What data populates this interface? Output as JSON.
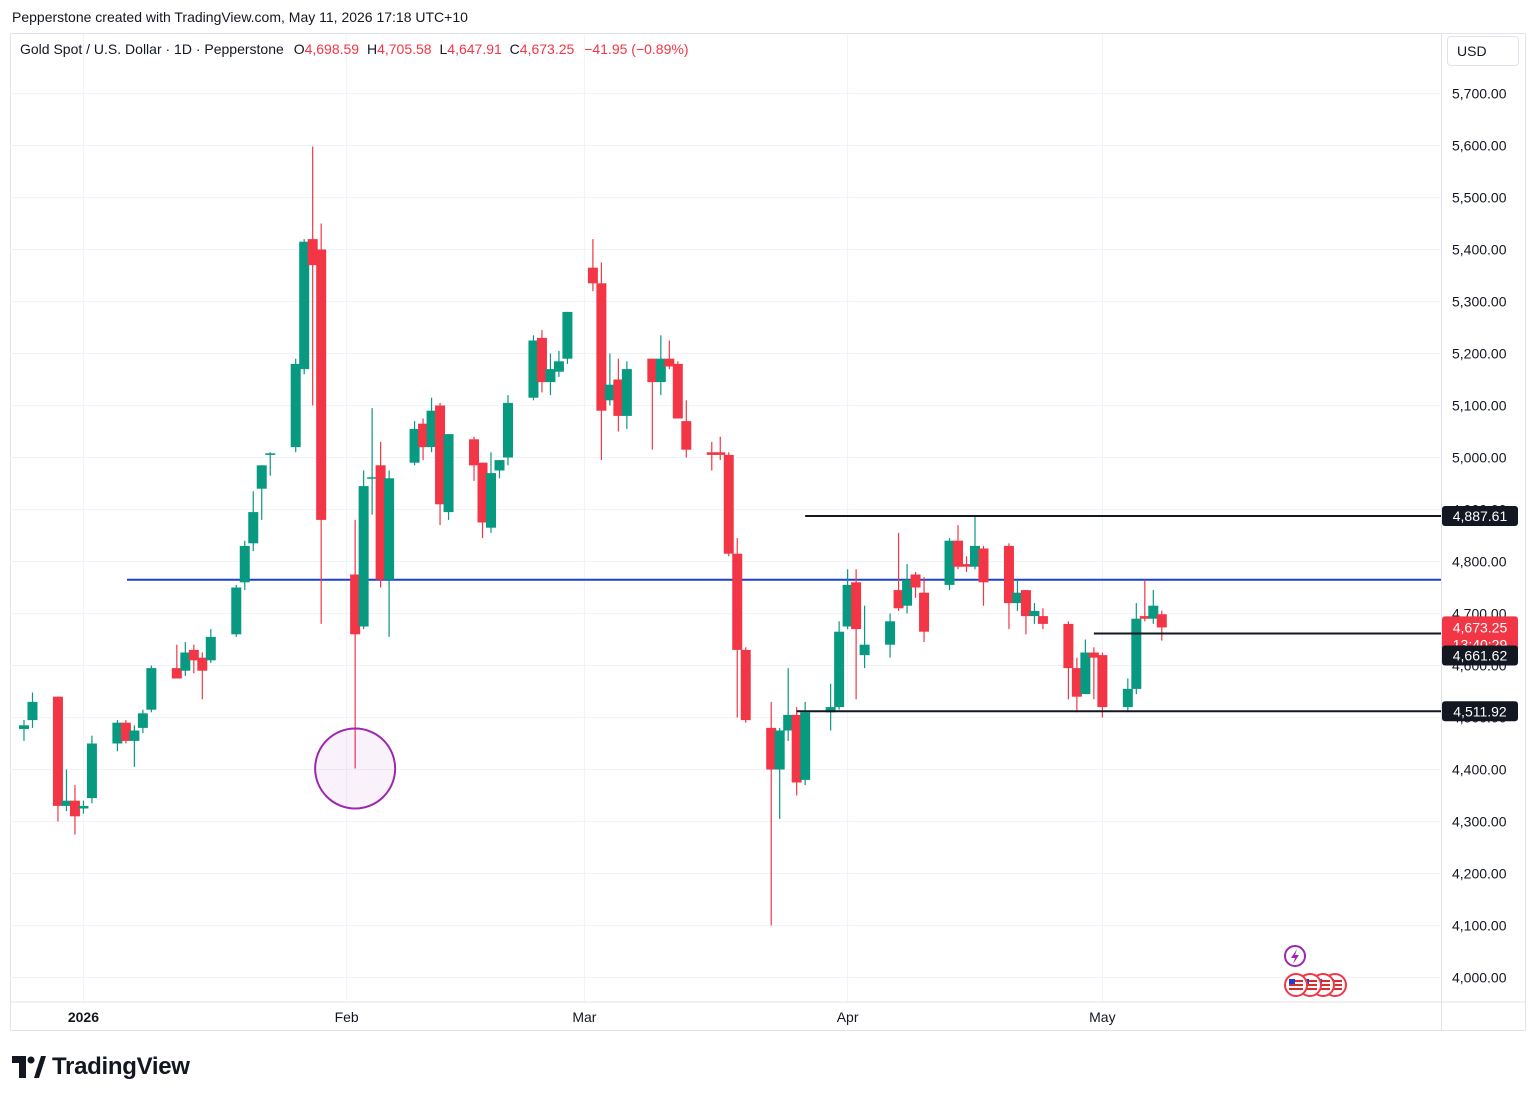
{
  "header": {
    "credit": "Pepperstone created with TradingView.com, May 11, 2026 17:18 UTC+10"
  },
  "legend": {
    "symbol": "Gold Spot / U.S. Dollar · 1D · Pepperstone",
    "o_label": "O",
    "o_value": "4,698.59",
    "h_label": "H",
    "h_value": "4,705.58",
    "l_label": "L",
    "l_value": "4,647.91",
    "c_label": "C",
    "c_value": "4,673.25",
    "change": "−41.95 (−0.89%)"
  },
  "currency": "USD",
  "brand": {
    "name": "TradingView"
  },
  "colors": {
    "up": "#089981",
    "down": "#f23645",
    "blue_line": "#1e3fd4",
    "circle": "#9c27b0",
    "label_dark": "#131722"
  },
  "chart_data": {
    "type": "candlestick",
    "symbol": "XAUUSD",
    "timeframe": "1D",
    "ylim": [
      3960,
      5780
    ],
    "y_ticks": [
      {
        "value": 4000,
        "label": "4,000.00"
      },
      {
        "value": 4100,
        "label": "4,100.00"
      },
      {
        "value": 4200,
        "label": "4,200.00"
      },
      {
        "value": 4300,
        "label": "4,300.00"
      },
      {
        "value": 4400,
        "label": "4,400.00"
      },
      {
        "value": 4500,
        "label": "4,500.00"
      },
      {
        "value": 4600,
        "label": "4,600.00"
      },
      {
        "value": 4700,
        "label": "4,700.00"
      },
      {
        "value": 4800,
        "label": "4,800.00"
      },
      {
        "value": 4900,
        "label": "4,900.00"
      },
      {
        "value": 5000,
        "label": "5,000.00"
      },
      {
        "value": 5100,
        "label": "5,100.00"
      },
      {
        "value": 5200,
        "label": "5,200.00"
      },
      {
        "value": 5300,
        "label": "5,300.00"
      },
      {
        "value": 5400,
        "label": "5,400.00"
      },
      {
        "value": 5500,
        "label": "5,500.00"
      },
      {
        "value": 5600,
        "label": "5,600.00"
      },
      {
        "value": 5700,
        "label": "5,700.00"
      }
    ],
    "x_ticks": [
      {
        "date": "2026-01-01",
        "label": "2026",
        "bold": true
      },
      {
        "date": "2026-02-01",
        "label": "Feb",
        "bold": false
      },
      {
        "date": "2026-03-01",
        "label": "Mar",
        "bold": false
      },
      {
        "date": "2026-04-01",
        "label": "Apr",
        "bold": false
      },
      {
        "date": "2026-05-01",
        "label": "May",
        "bold": false
      }
    ],
    "x_range": [
      "2025-12-24",
      "2026-06-10"
    ],
    "grid": true,
    "candles": [
      {
        "d": "2025-12-25",
        "o": 4478,
        "h": 4495,
        "l": 4455,
        "c": 4485
      },
      {
        "d": "2025-12-26",
        "o": 4495,
        "h": 4548,
        "l": 4480,
        "c": 4530
      },
      {
        "d": "2025-12-29",
        "o": 4540,
        "h": 4540,
        "l": 4300,
        "c": 4330
      },
      {
        "d": "2025-12-30",
        "o": 4330,
        "h": 4400,
        "l": 4320,
        "c": 4340
      },
      {
        "d": "2025-12-31",
        "o": 4340,
        "h": 4370,
        "l": 4275,
        "c": 4310
      },
      {
        "d": "2026-01-01",
        "o": 4325,
        "h": 4340,
        "l": 4315,
        "c": 4330
      },
      {
        "d": "2026-01-02",
        "o": 4345,
        "h": 4465,
        "l": 4335,
        "c": 4450
      },
      {
        "d": "2026-01-05",
        "o": 4450,
        "h": 4495,
        "l": 4435,
        "c": 4490
      },
      {
        "d": "2026-01-06",
        "o": 4490,
        "h": 4495,
        "l": 4450,
        "c": 4455
      },
      {
        "d": "2026-01-07",
        "o": 4455,
        "h": 4485,
        "l": 4405,
        "c": 4475
      },
      {
        "d": "2026-01-08",
        "o": 4480,
        "h": 4515,
        "l": 4470,
        "c": 4508
      },
      {
        "d": "2026-01-09",
        "o": 4515,
        "h": 4600,
        "l": 4510,
        "c": 4595
      },
      {
        "d": "2026-01-12",
        "o": 4595,
        "h": 4640,
        "l": 4580,
        "c": 4575
      },
      {
        "d": "2026-01-13",
        "o": 4590,
        "h": 4645,
        "l": 4580,
        "c": 4625
      },
      {
        "d": "2026-01-14",
        "o": 4630,
        "h": 4640,
        "l": 4585,
        "c": 4610
      },
      {
        "d": "2026-01-15",
        "o": 4615,
        "h": 4625,
        "l": 4535,
        "c": 4590
      },
      {
        "d": "2026-01-16",
        "o": 4610,
        "h": 4670,
        "l": 4605,
        "c": 4655
      },
      {
        "d": "2026-01-19",
        "o": 4660,
        "h": 4755,
        "l": 4655,
        "c": 4750
      },
      {
        "d": "2026-01-20",
        "o": 4760,
        "h": 4840,
        "l": 4745,
        "c": 4830
      },
      {
        "d": "2026-01-21",
        "o": 4835,
        "h": 4935,
        "l": 4820,
        "c": 4895
      },
      {
        "d": "2026-01-22",
        "o": 4940,
        "h": 4985,
        "l": 4880,
        "c": 4985
      },
      {
        "d": "2026-01-23",
        "o": 5005,
        "h": 5010,
        "l": 4965,
        "c": 5008
      },
      {
        "d": "2026-01-26",
        "o": 5020,
        "h": 5190,
        "l": 5010,
        "c": 5180
      },
      {
        "d": "2026-01-27",
        "o": 5170,
        "h": 5420,
        "l": 5160,
        "c": 5415
      },
      {
        "d": "2026-01-28",
        "o": 5420,
        "h": 5598,
        "l": 5100,
        "c": 5370
      },
      {
        "d": "2026-01-29",
        "o": 5400,
        "h": 5450,
        "l": 4680,
        "c": 4880
      },
      {
        "d": "2026-02-02",
        "o": 4775,
        "h": 4880,
        "l": 4402,
        "c": 4660
      },
      {
        "d": "2026-02-03",
        "o": 4675,
        "h": 4975,
        "l": 4670,
        "c": 4945
      },
      {
        "d": "2026-02-04",
        "o": 4960,
        "h": 5095,
        "l": 4890,
        "c": 4962
      },
      {
        "d": "2026-02-05",
        "o": 4985,
        "h": 5030,
        "l": 4750,
        "c": 4765
      },
      {
        "d": "2026-02-06",
        "o": 4765,
        "h": 4975,
        "l": 4655,
        "c": 4960
      },
      {
        "d": "2026-02-09",
        "o": 4990,
        "h": 5070,
        "l": 4985,
        "c": 5055
      },
      {
        "d": "2026-02-10",
        "o": 5065,
        "h": 5075,
        "l": 4995,
        "c": 5020
      },
      {
        "d": "2026-02-11",
        "o": 5020,
        "h": 5115,
        "l": 5010,
        "c": 5090
      },
      {
        "d": "2026-02-12",
        "o": 5100,
        "h": 5105,
        "l": 4870,
        "c": 4910
      },
      {
        "d": "2026-02-13",
        "o": 4895,
        "h": 5045,
        "l": 4880,
        "c": 5045
      },
      {
        "d": "2026-02-16",
        "o": 5035,
        "h": 5040,
        "l": 4955,
        "c": 4985
      },
      {
        "d": "2026-02-17",
        "o": 4990,
        "h": 4990,
        "l": 4845,
        "c": 4875
      },
      {
        "d": "2026-02-18",
        "o": 4865,
        "h": 5010,
        "l": 4855,
        "c": 4970
      },
      {
        "d": "2026-02-19",
        "o": 4975,
        "h": 4995,
        "l": 4960,
        "c": 4995
      },
      {
        "d": "2026-02-20",
        "o": 5000,
        "h": 5120,
        "l": 4985,
        "c": 5105
      },
      {
        "d": "2026-02-23",
        "o": 5115,
        "h": 5235,
        "l": 5110,
        "c": 5225
      },
      {
        "d": "2026-02-24",
        "o": 5230,
        "h": 5245,
        "l": 5125,
        "c": 5145
      },
      {
        "d": "2026-02-25",
        "o": 5145,
        "h": 5200,
        "l": 5120,
        "c": 5170
      },
      {
        "d": "2026-02-26",
        "o": 5165,
        "h": 5205,
        "l": 5155,
        "c": 5185
      },
      {
        "d": "2026-02-27",
        "o": 5190,
        "h": 5280,
        "l": 5180,
        "c": 5280
      },
      {
        "d": "2026-03-02",
        "o": 5365,
        "h": 5420,
        "l": 5320,
        "c": 5335
      },
      {
        "d": "2026-03-03",
        "o": 5335,
        "h": 5375,
        "l": 4995,
        "c": 5090
      },
      {
        "d": "2026-03-04",
        "o": 5110,
        "h": 5200,
        "l": 5100,
        "c": 5140
      },
      {
        "d": "2026-03-05",
        "o": 5150,
        "h": 5190,
        "l": 5050,
        "c": 5080
      },
      {
        "d": "2026-03-06",
        "o": 5080,
        "h": 5185,
        "l": 5055,
        "c": 5170
      },
      {
        "d": "2026-03-09",
        "o": 5190,
        "h": 5190,
        "l": 5015,
        "c": 5145
      },
      {
        "d": "2026-03-10",
        "o": 5145,
        "h": 5235,
        "l": 5120,
        "c": 5190
      },
      {
        "d": "2026-03-11",
        "o": 5190,
        "h": 5225,
        "l": 5170,
        "c": 5175
      },
      {
        "d": "2026-03-12",
        "o": 5180,
        "h": 5185,
        "l": 5075,
        "c": 5075
      },
      {
        "d": "2026-03-13",
        "o": 5070,
        "h": 5110,
        "l": 5000,
        "c": 5015
      },
      {
        "d": "2026-03-16",
        "o": 5010,
        "h": 5030,
        "l": 4975,
        "c": 5005
      },
      {
        "d": "2026-03-17",
        "o": 5010,
        "h": 5040,
        "l": 4995,
        "c": 5005
      },
      {
        "d": "2026-03-18",
        "o": 5005,
        "h": 5010,
        "l": 4810,
        "c": 4815
      },
      {
        "d": "2026-03-19",
        "o": 4815,
        "h": 4845,
        "l": 4500,
        "c": 4630
      },
      {
        "d": "2026-03-20",
        "o": 4630,
        "h": 4635,
        "l": 4490,
        "c": 4495
      },
      {
        "d": "2026-03-23",
        "o": 4480,
        "h": 4530,
        "l": 4100,
        "c": 4400
      },
      {
        "d": "2026-03-24",
        "o": 4400,
        "h": 4480,
        "l": 4305,
        "c": 4475
      },
      {
        "d": "2026-03-25",
        "o": 4475,
        "h": 4595,
        "l": 4455,
        "c": 4505
      },
      {
        "d": "2026-03-26",
        "o": 4505,
        "h": 4520,
        "l": 4350,
        "c": 4375
      },
      {
        "d": "2026-03-27",
        "o": 4380,
        "h": 4530,
        "l": 4370,
        "c": 4510
      },
      {
        "d": "2026-03-30",
        "o": 4510,
        "h": 4565,
        "l": 4475,
        "c": 4520
      },
      {
        "d": "2026-03-31",
        "o": 4520,
        "h": 4685,
        "l": 4515,
        "c": 4665
      },
      {
        "d": "2026-04-01",
        "o": 4675,
        "h": 4785,
        "l": 4670,
        "c": 4755
      },
      {
        "d": "2026-04-02",
        "o": 4760,
        "h": 4785,
        "l": 4535,
        "c": 4670
      },
      {
        "d": "2026-04-03",
        "o": 4620,
        "h": 4715,
        "l": 4595,
        "c": 4640
      },
      {
        "d": "2026-04-06",
        "o": 4640,
        "h": 4700,
        "l": 4615,
        "c": 4685
      },
      {
        "d": "2026-04-07",
        "o": 4745,
        "h": 4855,
        "l": 4705,
        "c": 4710
      },
      {
        "d": "2026-04-08",
        "o": 4715,
        "h": 4795,
        "l": 4700,
        "c": 4765
      },
      {
        "d": "2026-04-09",
        "o": 4775,
        "h": 4780,
        "l": 4730,
        "c": 4750
      },
      {
        "d": "2026-04-10",
        "o": 4740,
        "h": 4770,
        "l": 4645,
        "c": 4665
      },
      {
        "d": "2026-04-13",
        "o": 4755,
        "h": 4845,
        "l": 4745,
        "c": 4840
      },
      {
        "d": "2026-04-14",
        "o": 4840,
        "h": 4870,
        "l": 4785,
        "c": 4790
      },
      {
        "d": "2026-04-15",
        "o": 4795,
        "h": 4810,
        "l": 4780,
        "c": 4790
      },
      {
        "d": "2026-04-16",
        "o": 4790,
        "h": 4888,
        "l": 4785,
        "c": 4830
      },
      {
        "d": "2026-04-17",
        "o": 4825,
        "h": 4830,
        "l": 4715,
        "c": 4760
      },
      {
        "d": "2026-04-20",
        "o": 4830,
        "h": 4835,
        "l": 4670,
        "c": 4720
      },
      {
        "d": "2026-04-21",
        "o": 4720,
        "h": 4765,
        "l": 4705,
        "c": 4740
      },
      {
        "d": "2026-04-22",
        "o": 4745,
        "h": 4745,
        "l": 4660,
        "c": 4695
      },
      {
        "d": "2026-04-23",
        "o": 4695,
        "h": 4720,
        "l": 4680,
        "c": 4705
      },
      {
        "d": "2026-04-24",
        "o": 4695,
        "h": 4710,
        "l": 4670,
        "c": 4680
      },
      {
        "d": "2026-04-27",
        "o": 4680,
        "h": 4685,
        "l": 4535,
        "c": 4595
      },
      {
        "d": "2026-04-28",
        "o": 4595,
        "h": 4615,
        "l": 4510,
        "c": 4540
      },
      {
        "d": "2026-04-29",
        "o": 4545,
        "h": 4650,
        "l": 4545,
        "c": 4625
      },
      {
        "d": "2026-04-30",
        "o": 4625,
        "h": 4635,
        "l": 4535,
        "c": 4615
      },
      {
        "d": "2026-05-01",
        "o": 4620,
        "h": 4625,
        "l": 4500,
        "c": 4520
      },
      {
        "d": "2026-05-04",
        "o": 4520,
        "h": 4575,
        "l": 4510,
        "c": 4555
      },
      {
        "d": "2026-05-05",
        "o": 4555,
        "h": 4720,
        "l": 4545,
        "c": 4690
      },
      {
        "d": "2026-05-06",
        "o": 4695,
        "h": 4765,
        "l": 4685,
        "c": 4690
      },
      {
        "d": "2026-05-07",
        "o": 4690,
        "h": 4745,
        "l": 4680,
        "c": 4715
      },
      {
        "d": "2026-05-08",
        "o": 4698.59,
        "h": 4705.58,
        "l": 4647.91,
        "c": 4673.25
      }
    ],
    "annotations": {
      "blue_level": 4765,
      "levels": [
        {
          "value": 4887.61,
          "label": "4,887.61",
          "start": "2026-03-27",
          "end": "2026-06-05"
        },
        {
          "value": 4661.62,
          "label": "4,661.62",
          "start": "2026-04-30",
          "end": "2026-06-05"
        },
        {
          "value": 4511.92,
          "label": "4,511.92",
          "start": "2026-03-26",
          "end": "2026-06-05"
        }
      ],
      "last_price": {
        "label": "4,673.25",
        "countdown": "13:40:29",
        "value": 4673.25
      },
      "circle": {
        "date": "2026-02-02",
        "value": 4402
      }
    }
  }
}
